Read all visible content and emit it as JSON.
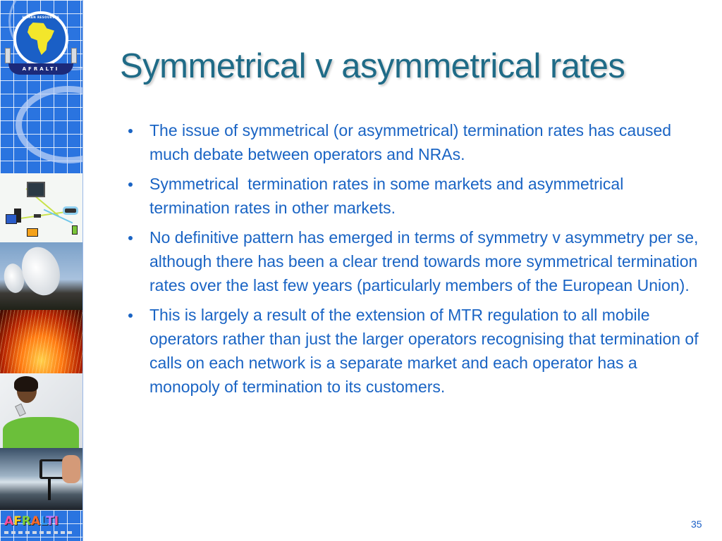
{
  "slide": {
    "title": "Symmetrical v asymmetrical rates",
    "page_number": "35",
    "bullets": [
      {
        "text": "The issue of symmetrical (or asymmetrical) termination rates has caused much debate between operators and NRAs."
      },
      {
        "text": "Symmetrical  termination rates in some markets and asymmetrical termination rates in other markets."
      },
      {
        "text": "No definitive pattern has emerged in terms of symmetry v asymmetry per se, although there has been a clear trend towards more symmetrical termination rates over the last few years (particularly members of the European Union)."
      },
      {
        "text": "This is largely a result of the extension of MTR regulation to all mobile operators rather than just the larger operators recognising that termination of calls on each network is a separate market and each operator has a monopoly of termination to its customers."
      }
    ]
  },
  "sidebar": {
    "logo": {
      "ring_text_top": "HUMAN RESOURCES",
      "ring_text_bottom": "DEVELOPMENT FOR AFRICA",
      "banner": "AFRALTI"
    },
    "images": [
      {
        "name": "network-devices-image"
      },
      {
        "name": "satellite-dishes-image"
      },
      {
        "name": "fiber-optic-world-map-image"
      },
      {
        "name": "woman-on-phone-image"
      },
      {
        "name": "camera-photo-image"
      }
    ],
    "footer_logo_letters": [
      "A",
      "F",
      "R",
      "A",
      "L",
      "T",
      "I"
    ]
  },
  "colors": {
    "title": "#1f6b87",
    "body_text": "#1a64c4",
    "sidebar_blue": "#2a74e0",
    "page_number": "#1a5fc6"
  }
}
